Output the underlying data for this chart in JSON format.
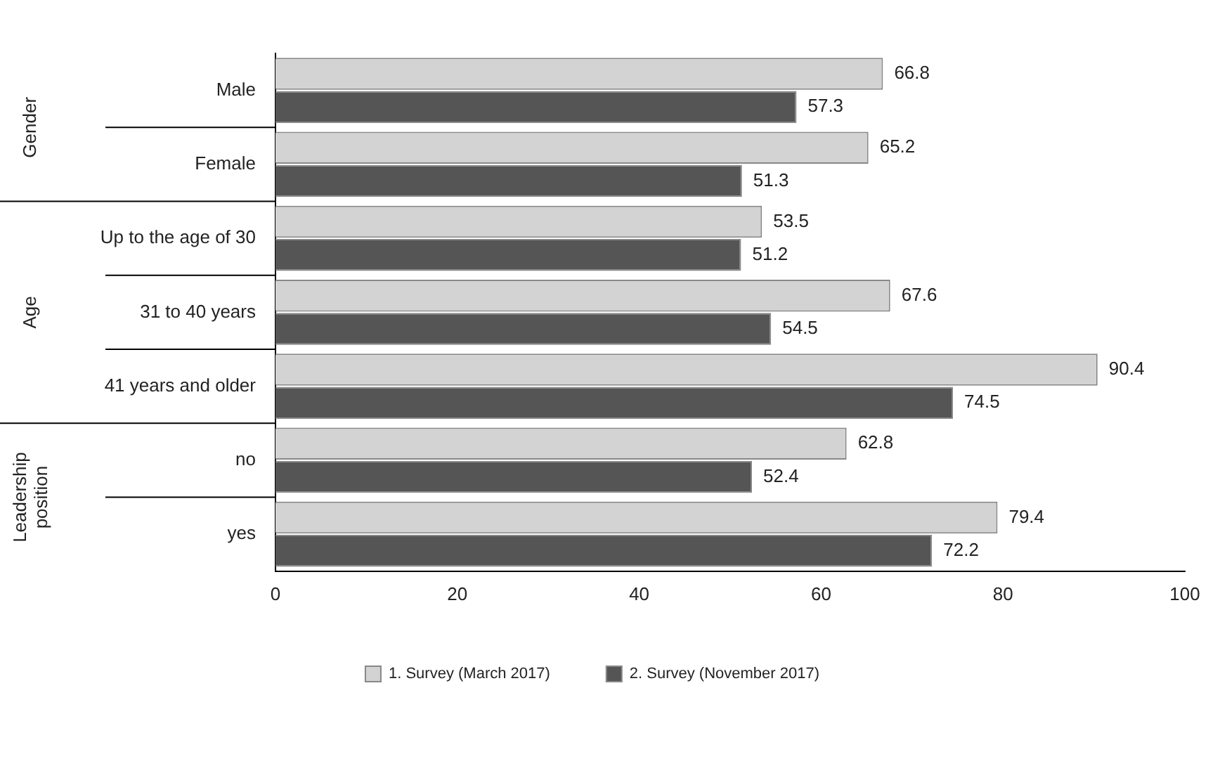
{
  "chart_data": {
    "type": "bar",
    "orientation": "horizontal",
    "categories": [
      "Male",
      "Female",
      "Up to the age of 30",
      "31 to 40 years",
      "41 years and older",
      "no",
      "yes"
    ],
    "series": [
      {
        "name": "1. Survey (March 2017)",
        "color": "#d3d3d3",
        "values": [
          66.8,
          65.2,
          53.5,
          67.6,
          90.4,
          62.8,
          79.4
        ]
      },
      {
        "name": "2. Survey (November 2017)",
        "color": "#555555",
        "values": [
          57.3,
          51.3,
          51.2,
          54.5,
          74.5,
          52.4,
          72.2
        ]
      }
    ],
    "annotations": [
      "Gender",
      "Age",
      "Leadership position"
    ],
    "xlim": [
      0,
      100
    ],
    "xticks": [
      0,
      20,
      40,
      60,
      80,
      100
    ],
    "grid": false,
    "legend": "bottom",
    "data_labels": true
  }
}
